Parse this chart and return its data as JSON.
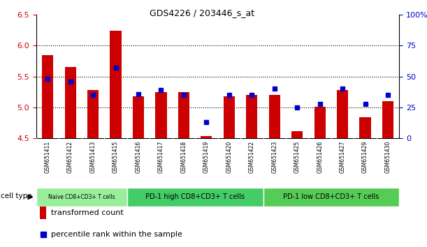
{
  "title": "GDS4226 / 203446_s_at",
  "samples": [
    "GSM651411",
    "GSM651412",
    "GSM651413",
    "GSM651415",
    "GSM651416",
    "GSM651417",
    "GSM651418",
    "GSM651419",
    "GSM651420",
    "GSM651422",
    "GSM651423",
    "GSM651425",
    "GSM651426",
    "GSM651427",
    "GSM651429",
    "GSM651430"
  ],
  "transformed_count": [
    5.85,
    5.65,
    5.28,
    6.24,
    5.18,
    5.25,
    5.25,
    4.54,
    5.18,
    5.2,
    5.2,
    4.62,
    5.01,
    5.28,
    4.84,
    5.1
  ],
  "percentile_rank": [
    48,
    46,
    35,
    57,
    36,
    39,
    35,
    13,
    35,
    35,
    40,
    25,
    28,
    40,
    28,
    35
  ],
  "ylim_left": [
    4.5,
    6.5
  ],
  "ylim_right": [
    0,
    100
  ],
  "yticks_left": [
    4.5,
    5.0,
    5.5,
    6.0,
    6.5
  ],
  "yticks_right": [
    0,
    25,
    50,
    75,
    100
  ],
  "ytick_labels_right": [
    "0",
    "25",
    "50",
    "75",
    "100%"
  ],
  "bar_color": "#cc0000",
  "square_color": "#0000cc",
  "xticklabel_bg": "#d4d4d4",
  "groups": [
    {
      "label": "Naive CD8+CD3+ T cells",
      "start": 0,
      "end": 4,
      "color": "#99ee99"
    },
    {
      "label": "PD-1 high CD8+CD3+ T cells",
      "start": 4,
      "end": 10,
      "color": "#44cc66"
    },
    {
      "label": "PD-1 low CD8+CD3+ T cells",
      "start": 10,
      "end": 16,
      "color": "#55cc55"
    }
  ],
  "cell_type_label": "cell type",
  "legend_bar_label": "transformed count",
  "legend_square_label": "percentile rank within the sample",
  "background_color": "#ffffff",
  "plot_bg": "#ffffff",
  "tick_color_left": "#cc0000",
  "tick_color_right": "#0000cc",
  "spine_color": "#000000"
}
